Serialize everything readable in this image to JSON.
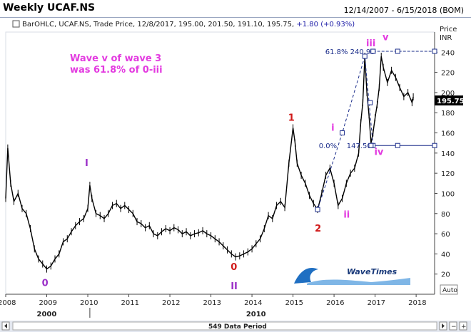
{
  "header": {
    "title": "Weekly UCAF.NS",
    "date_range": "12/14/2007 - 6/15/2018 (BOM)"
  },
  "ohlc": {
    "bar_type": "BarOHLC",
    "symbol": "UCAF.NS",
    "field": "Trade Price",
    "date": "12/8/2017",
    "open": "195.00",
    "high": "201.50",
    "low": "191.10",
    "close": "195.75",
    "change": "+1.80",
    "change_pct": "(+0.93%)"
  },
  "note": {
    "line1": "Wave v of wave 3",
    "line2": "was 61.8% of 0-iii"
  },
  "price_axis": {
    "head1": "Price",
    "head2": "INR",
    "last_price": "195.75",
    "auto_label": "Auto"
  },
  "footer": {
    "period": "549 Data Period"
  },
  "watermark": {
    "text": "WaveTimes"
  },
  "fib": {
    "upper_label": "61.8% 240.93",
    "lower_pct": "0.0%",
    "lower_val": "147.50"
  },
  "colors": {
    "series": "#000000",
    "fib": "#1a2c8a",
    "red_label": "#d01818",
    "purple_label": "#9b30c8",
    "magenta_label": "#e33be0",
    "last_price_bg": "#000000"
  },
  "chart_data": {
    "type": "line",
    "title": "Weekly UCAF.NS",
    "ylim": [
      0,
      260
    ],
    "xlim": [
      2008.0,
      2018.45
    ],
    "y_ticks": [
      20,
      40,
      60,
      80,
      100,
      120,
      140,
      160,
      180,
      200,
      220,
      240
    ],
    "x_ticks": [
      2008,
      2009,
      2010,
      2011,
      2012,
      2013,
      2014,
      2015,
      2016,
      2017,
      2018
    ],
    "x_labels_top": [
      "2008",
      "2009",
      "2010",
      "2011",
      "2012",
      "2013",
      "2014",
      "2015",
      "2016",
      "2017",
      "2018"
    ],
    "x_labels_bottom": [
      "2000",
      "2010"
    ],
    "grid": false,
    "series": [
      {
        "values": [
          [
            2008.0,
            95
          ],
          [
            2008.05,
            145
          ],
          [
            2008.12,
            110
          ],
          [
            2008.2,
            92
          ],
          [
            2008.3,
            100
          ],
          [
            2008.4,
            85
          ],
          [
            2008.5,
            80
          ],
          [
            2008.6,
            65
          ],
          [
            2008.7,
            45
          ],
          [
            2008.8,
            35
          ],
          [
            2008.9,
            30
          ],
          [
            2009.0,
            25
          ],
          [
            2009.1,
            28
          ],
          [
            2009.2,
            35
          ],
          [
            2009.3,
            40
          ],
          [
            2009.4,
            52
          ],
          [
            2009.5,
            55
          ],
          [
            2009.6,
            62
          ],
          [
            2009.7,
            68
          ],
          [
            2009.8,
            72
          ],
          [
            2009.9,
            75
          ],
          [
            2010.0,
            85
          ],
          [
            2010.05,
            108
          ],
          [
            2010.1,
            95
          ],
          [
            2010.2,
            80
          ],
          [
            2010.3,
            78
          ],
          [
            2010.4,
            75
          ],
          [
            2010.5,
            80
          ],
          [
            2010.6,
            88
          ],
          [
            2010.7,
            90
          ],
          [
            2010.8,
            85
          ],
          [
            2010.9,
            88
          ],
          [
            2011.0,
            84
          ],
          [
            2011.1,
            80
          ],
          [
            2011.2,
            72
          ],
          [
            2011.3,
            70
          ],
          [
            2011.4,
            66
          ],
          [
            2011.5,
            68
          ],
          [
            2011.6,
            60
          ],
          [
            2011.7,
            58
          ],
          [
            2011.8,
            62
          ],
          [
            2011.9,
            65
          ],
          [
            2012.0,
            63
          ],
          [
            2012.1,
            66
          ],
          [
            2012.2,
            64
          ],
          [
            2012.3,
            60
          ],
          [
            2012.4,
            62
          ],
          [
            2012.5,
            58
          ],
          [
            2012.6,
            60
          ],
          [
            2012.7,
            61
          ],
          [
            2012.8,
            63
          ],
          [
            2012.9,
            60
          ],
          [
            2013.0,
            58
          ],
          [
            2013.1,
            55
          ],
          [
            2013.2,
            52
          ],
          [
            2013.3,
            48
          ],
          [
            2013.4,
            44
          ],
          [
            2013.5,
            40
          ],
          [
            2013.6,
            37
          ],
          [
            2013.7,
            38
          ],
          [
            2013.8,
            40
          ],
          [
            2013.9,
            42
          ],
          [
            2014.0,
            45
          ],
          [
            2014.1,
            50
          ],
          [
            2014.2,
            55
          ],
          [
            2014.3,
            65
          ],
          [
            2014.4,
            78
          ],
          [
            2014.5,
            75
          ],
          [
            2014.6,
            88
          ],
          [
            2014.7,
            92
          ],
          [
            2014.8,
            86
          ],
          [
            2014.9,
            130
          ],
          [
            2015.0,
            165
          ],
          [
            2015.05,
            150
          ],
          [
            2015.1,
            130
          ],
          [
            2015.2,
            118
          ],
          [
            2015.3,
            110
          ],
          [
            2015.4,
            98
          ],
          [
            2015.5,
            90
          ],
          [
            2015.6,
            84
          ],
          [
            2015.7,
            100
          ],
          [
            2015.8,
            118
          ],
          [
            2015.9,
            125
          ],
          [
            2016.0,
            110
          ],
          [
            2016.1,
            88
          ],
          [
            2016.2,
            95
          ],
          [
            2016.3,
            110
          ],
          [
            2016.4,
            120
          ],
          [
            2016.5,
            125
          ],
          [
            2016.6,
            140
          ],
          [
            2016.65,
            170
          ],
          [
            2016.7,
            190
          ],
          [
            2016.75,
            236
          ],
          [
            2016.8,
            200
          ],
          [
            2016.85,
            178
          ],
          [
            2016.9,
            150
          ],
          [
            2016.95,
            160
          ],
          [
            2017.0,
            175
          ],
          [
            2017.05,
            188
          ],
          [
            2017.1,
            205
          ],
          [
            2017.15,
            236
          ],
          [
            2017.2,
            225
          ],
          [
            2017.3,
            210
          ],
          [
            2017.4,
            222
          ],
          [
            2017.5,
            215
          ],
          [
            2017.6,
            205
          ],
          [
            2017.7,
            196
          ],
          [
            2017.8,
            200
          ],
          [
            2017.9,
            190
          ],
          [
            2017.93,
            195.75
          ]
        ]
      }
    ],
    "wave_labels": [
      {
        "label": "0",
        "x": 2008.95,
        "y": 8,
        "color": "purple"
      },
      {
        "label": "I",
        "x": 2010.0,
        "y": 127,
        "color": "purple"
      },
      {
        "label": "II",
        "x": 2013.55,
        "y": 5,
        "color": "purple"
      },
      {
        "label": "0",
        "x": 2013.55,
        "y": 24,
        "color": "red"
      },
      {
        "label": "1",
        "x": 2014.95,
        "y": 172,
        "color": "red"
      },
      {
        "label": "2",
        "x": 2015.6,
        "y": 62,
        "color": "red"
      },
      {
        "label": "i",
        "x": 2016.0,
        "y": 162,
        "color": "magenta"
      },
      {
        "label": "ii",
        "x": 2016.3,
        "y": 76,
        "color": "magenta"
      },
      {
        "label": "iii",
        "x": 2016.85,
        "y": 246,
        "color": "magenta"
      },
      {
        "label": "iv",
        "x": 2017.05,
        "y": 138,
        "color": "magenta"
      },
      {
        "label": "v",
        "x": 2017.25,
        "y": 252,
        "color": "magenta"
      }
    ],
    "wave_markers": [
      [
        2015.6,
        84
      ],
      [
        2016.2,
        160
      ],
      [
        2016.75,
        236
      ],
      [
        2016.88,
        190
      ],
      [
        2016.9,
        147.5
      ],
      [
        2016.95,
        240.9
      ]
    ],
    "fib_levels": [
      {
        "label": "61.8% 240.93",
        "value": 240.93,
        "x_start": 2016.95,
        "x_end": 2018.45,
        "marker_x": 2017.55
      },
      {
        "label": "0.0% 147.50",
        "value": 147.5,
        "x_start": 2016.95,
        "x_end": 2018.45,
        "marker_x": 2017.55
      }
    ],
    "dashed_path": [
      [
        2016.95,
        147.5
      ],
      [
        2016.75,
        236
      ],
      [
        2016.2,
        160
      ],
      [
        2015.6,
        84
      ]
    ]
  }
}
